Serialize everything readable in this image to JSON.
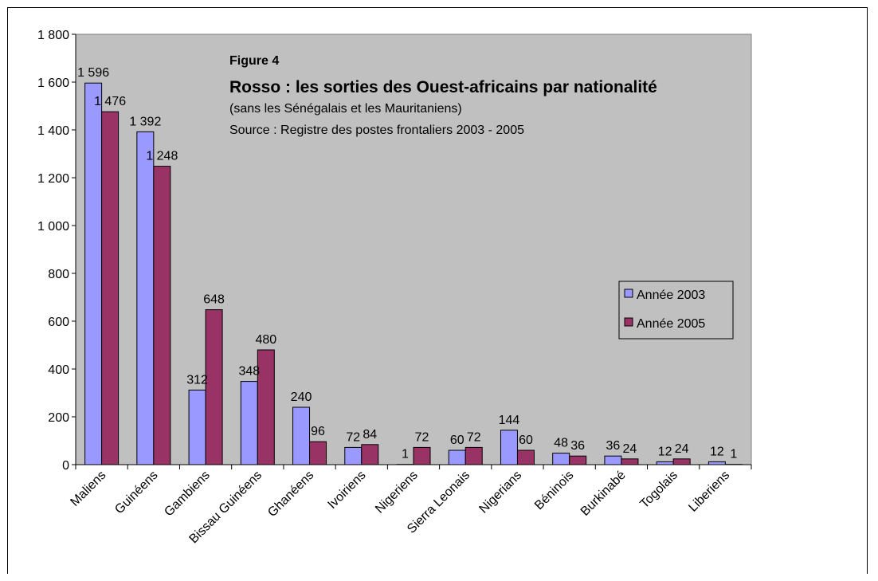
{
  "chart_data": {
    "type": "bar",
    "figure_label": "Figure 4",
    "title": "Rosso : les sorties des Ouest-africains par nationalité",
    "subtitle_lines": [
      "(sans les Sénégalais et les Mauritaniens)",
      "Source : Registre des postes frontaliers 2003 - 2005"
    ],
    "categories": [
      "Maliens",
      "Guinéens",
      "Gambiens",
      "Bissau Guinéens",
      "Ghanéens",
      "Ivoiriens",
      "Nigeriens",
      "Sierra Leonais",
      "Nigerians",
      "Béninois",
      "Burkinabé",
      "Togolais",
      "Liberiens"
    ],
    "series": [
      {
        "name": "Année 2003",
        "color": "#9999ff",
        "values": [
          1596,
          1392,
          312,
          348,
          240,
          72,
          1,
          60,
          144,
          48,
          36,
          12,
          12
        ]
      },
      {
        "name": "Année 2005",
        "color": "#993366",
        "values": [
          1476,
          1248,
          648,
          480,
          96,
          84,
          72,
          72,
          60,
          36,
          24,
          24,
          1
        ]
      }
    ],
    "ylim": [
      0,
      1800
    ],
    "yticks": [
      0,
      200,
      400,
      600,
      800,
      1000,
      1200,
      1400,
      1600,
      1800
    ],
    "ytick_labels": [
      "0",
      "200",
      "400",
      "600",
      "800",
      "1 000",
      "1 200",
      "1 400",
      "1 600",
      "1 800"
    ],
    "plot_background": "#c0c0c0",
    "grid": false,
    "legend_position": "right"
  }
}
